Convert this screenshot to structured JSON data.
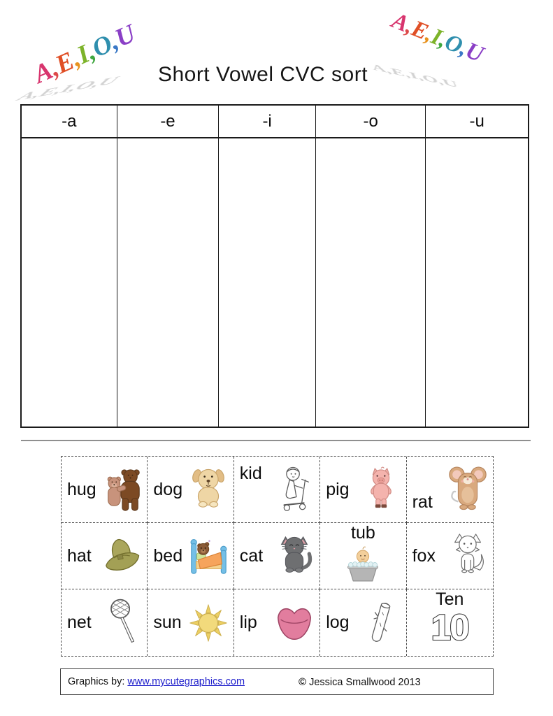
{
  "page": {
    "title": "Short Vowel CVC sort"
  },
  "decorations": {
    "text": "A,E,I,O,U",
    "letter_colors": [
      "#d8356e",
      "#dd4a4a",
      "#e04f26",
      "#e8921e",
      "#7db32a",
      "#3fa73f",
      "#2f8fae",
      "#3a78c6",
      "#8a3fc6"
    ],
    "shadow_color": "#c7c7c7"
  },
  "sort_table": {
    "columns": [
      {
        "label": "-a"
      },
      {
        "label": "-e"
      },
      {
        "label": "-i"
      },
      {
        "label": "-o"
      },
      {
        "label": "-u"
      }
    ]
  },
  "cards": {
    "items": [
      {
        "word": "hug",
        "icon": "hugging-bears"
      },
      {
        "word": "dog",
        "icon": "puppy"
      },
      {
        "word": "kid",
        "icon": "kid-on-scooter"
      },
      {
        "word": "pig",
        "icon": "pig"
      },
      {
        "word": "rat",
        "icon": "rat"
      },
      {
        "word": "hat",
        "icon": "cowboy-hat"
      },
      {
        "word": "bed",
        "icon": "bed-with-bear"
      },
      {
        "word": "cat",
        "icon": "gray-cat"
      },
      {
        "word": "tub",
        "icon": "baby-in-tub"
      },
      {
        "word": "fox",
        "icon": "fox-outline"
      },
      {
        "word": "net",
        "icon": "butterfly-net"
      },
      {
        "word": "sun",
        "icon": "sun"
      },
      {
        "word": "lip",
        "icon": "lips"
      },
      {
        "word": "log",
        "icon": "log-outline"
      },
      {
        "word": "Ten",
        "icon": "number-ten",
        "number": "10"
      }
    ]
  },
  "footer": {
    "credit_prefix": "Graphics by: ",
    "credit_link": "www.mycutegraphics.com",
    "link_color": "#2020cc",
    "copyright_symbol": "©",
    "copyright_text": "Jessica Smallwood 2013"
  }
}
